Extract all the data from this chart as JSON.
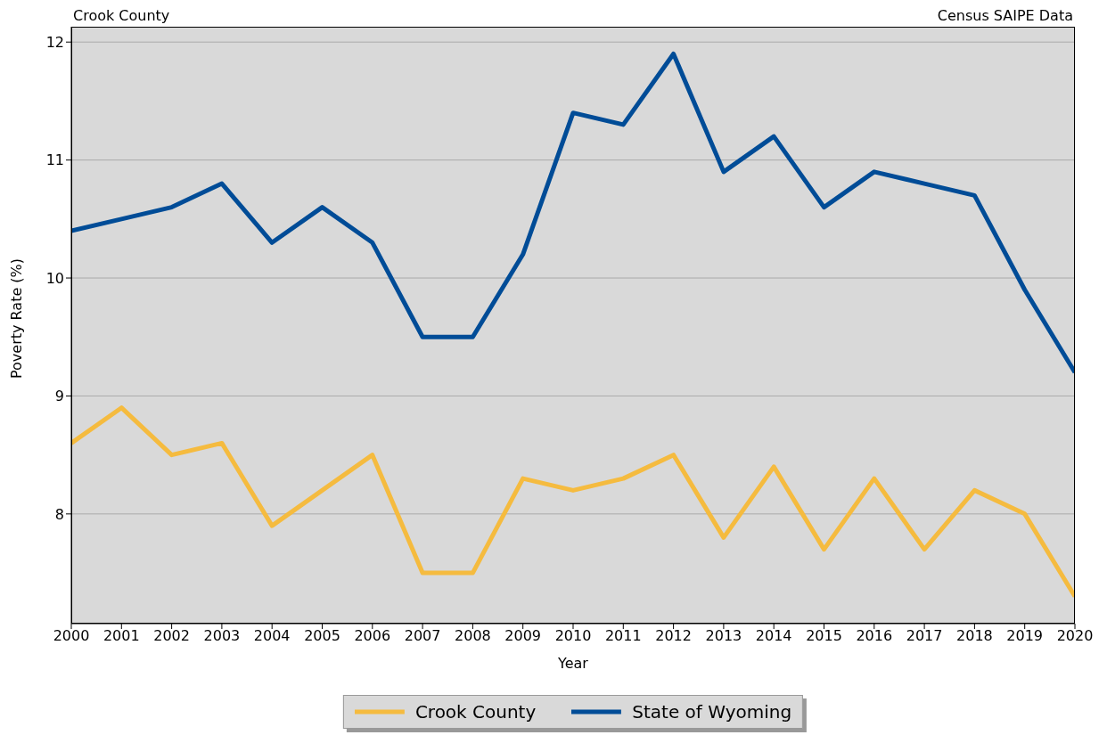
{
  "chart_data": {
    "type": "line",
    "annotations": [
      "Crook County",
      "Census SAIPE Data"
    ],
    "xlabel": "Year",
    "ylabel": "Poverty Rate (%)",
    "x": [
      2000,
      2001,
      2002,
      2003,
      2004,
      2005,
      2006,
      2007,
      2008,
      2009,
      2010,
      2011,
      2012,
      2013,
      2014,
      2015,
      2016,
      2017,
      2018,
      2019,
      2020
    ],
    "series": [
      {
        "name": "Crook County",
        "color": "#f5bb3f",
        "values": [
          8.6,
          8.9,
          8.5,
          8.6,
          7.9,
          8.2,
          8.5,
          7.5,
          7.5,
          8.3,
          8.2,
          8.3,
          8.5,
          7.8,
          8.4,
          7.7,
          8.3,
          7.7,
          8.2,
          8.0,
          7.3
        ]
      },
      {
        "name": "State of Wyoming",
        "color": "#004c97",
        "values": [
          10.4,
          10.5,
          10.6,
          10.8,
          10.3,
          10.6,
          10.3,
          9.5,
          9.5,
          10.2,
          11.4,
          11.3,
          11.9,
          10.9,
          11.2,
          10.6,
          10.9,
          10.8,
          10.7,
          9.9,
          9.2
        ]
      }
    ],
    "xlim": [
      2000,
      2020
    ],
    "xticks": [
      2000,
      2001,
      2002,
      2003,
      2004,
      2005,
      2006,
      2007,
      2008,
      2009,
      2010,
      2011,
      2012,
      2013,
      2014,
      2015,
      2016,
      2017,
      2018,
      2019,
      2020
    ],
    "ylim": [
      7.07,
      12.13
    ],
    "yticks": [
      8,
      9,
      10,
      11,
      12
    ],
    "grid": "y",
    "legend": "bottom",
    "marker": "none",
    "line_style": "solid"
  }
}
